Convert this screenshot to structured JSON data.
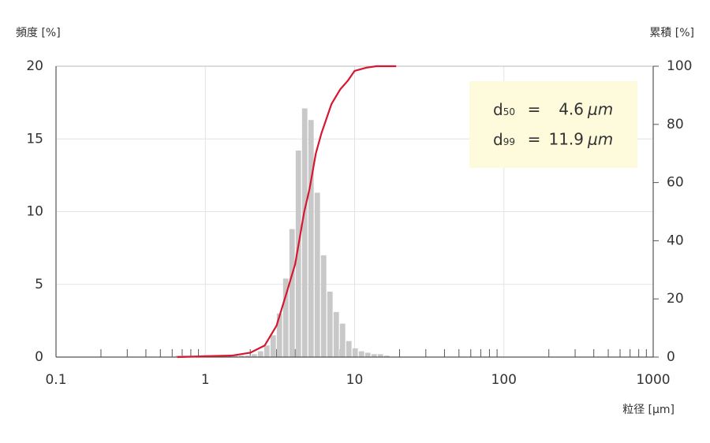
{
  "chart_data": {
    "type": "histogram",
    "y_label": "頻度 [%]",
    "y2_label": "累積 [%]",
    "x_label": "粒径 [μm]",
    "x_scale": "log",
    "bins": [
      0.63,
      0.694,
      0.765,
      0.844,
      0.93,
      1.025,
      1.13,
      1.245,
      1.372,
      1.513,
      1.667,
      1.838,
      2.026,
      2.233,
      2.461,
      2.712,
      2.99,
      3.295,
      3.632,
      4.003,
      4.412,
      4.863,
      5.36,
      5.908,
      6.512,
      7.177,
      7.911,
      8.72,
      9.611,
      10.59,
      11.68,
      12.87,
      14.19,
      15.64,
      17.24,
      19.0
    ],
    "values": [
      0.1,
      0.1,
      0.1,
      0.1,
      0.1,
      0.1,
      0.1,
      0.1,
      0.1,
      0.1,
      0.1,
      0.1,
      0.2,
      0.4,
      0.8,
      1.5,
      3.0,
      5.4,
      8.8,
      14.2,
      17.1,
      16.3,
      11.3,
      7.0,
      4.5,
      3.1,
      2.3,
      1.1,
      0.6,
      0.4,
      0.3,
      0.2,
      0.2,
      0.1,
      0.0
    ],
    "color": "#c8c8c8",
    "cumulative": {
      "type": "line",
      "axis": "y2",
      "color": "#d7172f",
      "x": [
        0.65,
        1,
        1.5,
        2,
        2.5,
        3,
        3.5,
        4,
        4.6,
        5,
        5.5,
        6,
        7,
        8,
        9,
        10,
        12,
        14,
        19
      ],
      "values": [
        0,
        0.3,
        0.5,
        1.5,
        4,
        10.8,
        22,
        32,
        50,
        58,
        70,
        77,
        87,
        92,
        95,
        98.4,
        99.5,
        100,
        100
      ]
    },
    "xlim": [
      0.1,
      1000
    ],
    "xticks": [
      0.1,
      1,
      10,
      100,
      1000
    ],
    "xminorticks": [
      0.2,
      0.3,
      0.4,
      0.5,
      0.6,
      0.7,
      0.8,
      0.9,
      2,
      3,
      4,
      5,
      6,
      7,
      8,
      9,
      20,
      30,
      40,
      50,
      60,
      70,
      80,
      90,
      200,
      300,
      400,
      500,
      600,
      700,
      800,
      900
    ],
    "ylim": [
      0,
      20
    ],
    "yticks": [
      0,
      5,
      10,
      15,
      20
    ],
    "y2lim": [
      0,
      100
    ],
    "y2ticks": [
      0,
      20,
      40,
      60,
      80,
      100
    ],
    "grid": true,
    "annotations": [
      {
        "symbol": "d",
        "subscript": "50",
        "operator": "=",
        "value": "4.6",
        "unit": "μm"
      },
      {
        "symbol": "d",
        "subscript": "99",
        "operator": "=",
        "value": "11.9",
        "unit": "μm"
      }
    ]
  }
}
